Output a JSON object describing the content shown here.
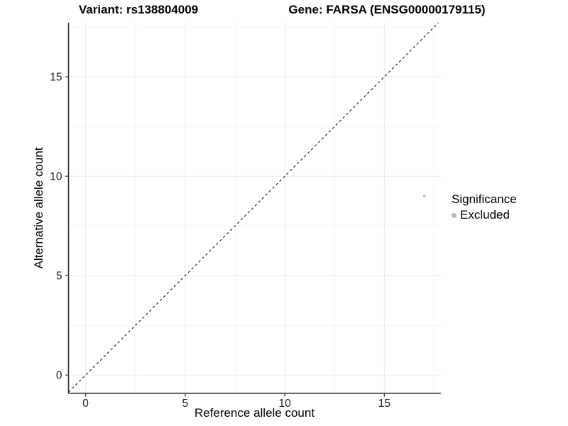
{
  "chart_data": {
    "type": "scatter",
    "title_left": "Variant: rs138804009",
    "title_right": "Gene: FARSA (ENSG00000179115)",
    "xlabel": "Reference allele count",
    "ylabel": "Alternative allele count",
    "xlim": [
      -0.86,
      17.84
    ],
    "ylim": [
      -0.92,
      17.72
    ],
    "x_major_ticks": [
      0,
      5,
      10,
      15
    ],
    "y_major_ticks": [
      0,
      5,
      10,
      15
    ],
    "x_minor_ticks": [
      2.5,
      7.5,
      12.5,
      17.5
    ],
    "y_minor_ticks": [
      2.5,
      7.5,
      12.5,
      17.5
    ],
    "grid": true,
    "legend_position": "right",
    "reference_line": {
      "type": "identity y=x",
      "style": "dashed",
      "color": "#1a1a1a"
    },
    "points": [
      {
        "x": 17,
        "y": 9,
        "significance": "Excluded"
      }
    ],
    "point_color": "#c6c6c6",
    "legend": {
      "title": "Significance",
      "items": [
        {
          "label": "Excluded",
          "color": "#b9b9b9"
        }
      ]
    },
    "colors": {
      "background": "#ffffff",
      "axis_line": "#333333",
      "tick_label": "#1f1f1f",
      "grid_major": "#eaeaea",
      "grid_minor": "#f4f4f4"
    }
  }
}
